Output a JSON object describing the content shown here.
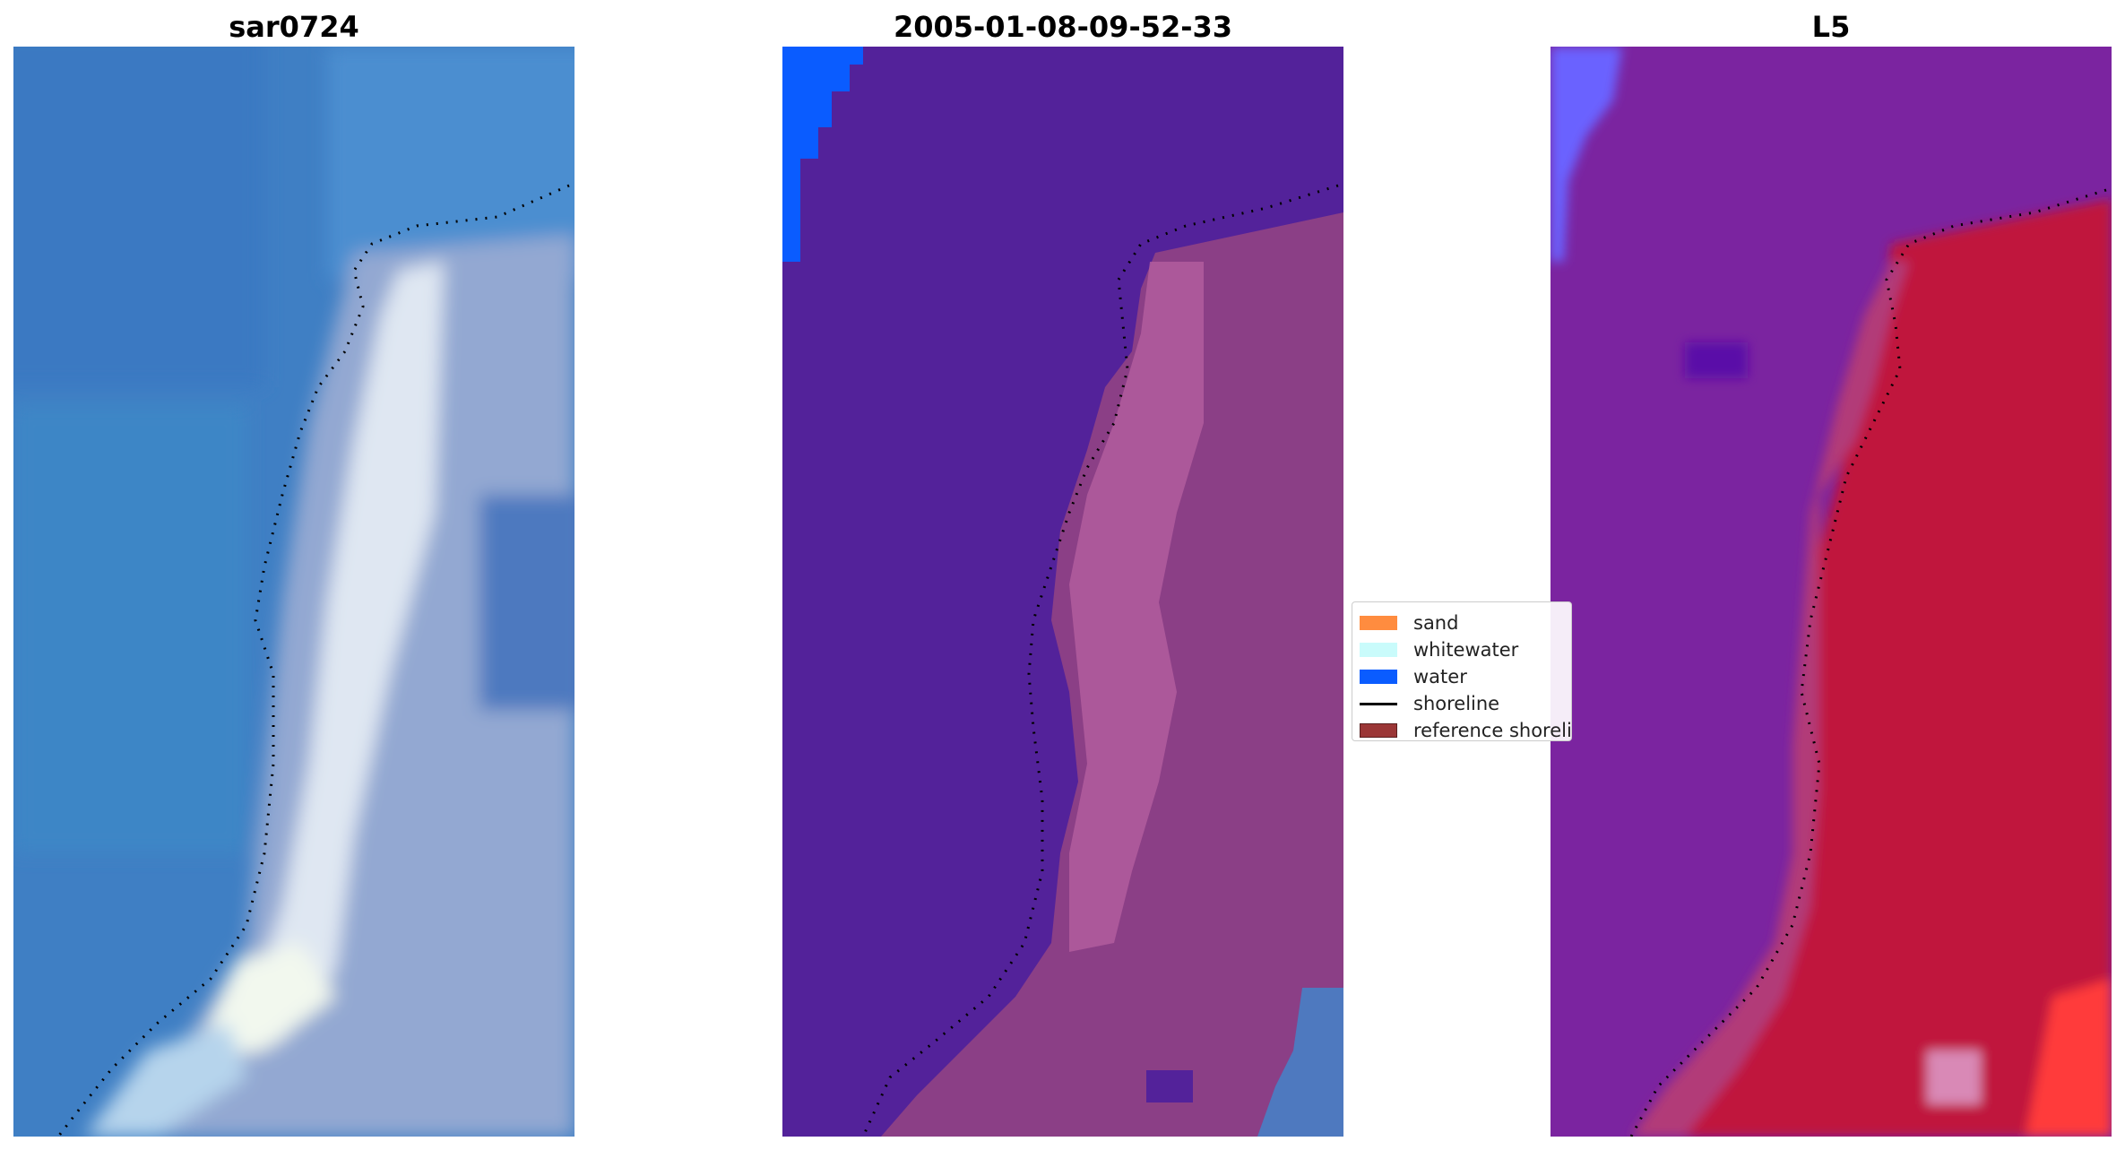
{
  "figure": {
    "panels": [
      {
        "title": "sar0724"
      },
      {
        "title": "2005-01-08-09-52-33"
      },
      {
        "title": "L5"
      }
    ]
  },
  "legend": {
    "items": [
      {
        "label": "sand",
        "color": "#ff8c3f",
        "kind": "patch"
      },
      {
        "label": "whitewater",
        "color": "#c9fbfb",
        "kind": "patch"
      },
      {
        "label": "water",
        "color": "#0a5cff",
        "kind": "patch"
      },
      {
        "label": "shoreline",
        "color": "#000000",
        "kind": "line"
      },
      {
        "label": "reference shoreline",
        "color": "#9b3636",
        "kind": "patch"
      }
    ]
  },
  "colors": {
    "left_water": "#3f7fc4",
    "left_sand": "#c3d3ee",
    "left_foam": "#ecf6f3",
    "mid_water_class": "#53229a",
    "mid_land": "#8b3f86",
    "mid_land_light": "#b45f9f",
    "mid_blue_class": "#0a5cff",
    "right_water": "#7b24a0",
    "right_land": "#c0123e",
    "right_light": "#6b62ff"
  }
}
